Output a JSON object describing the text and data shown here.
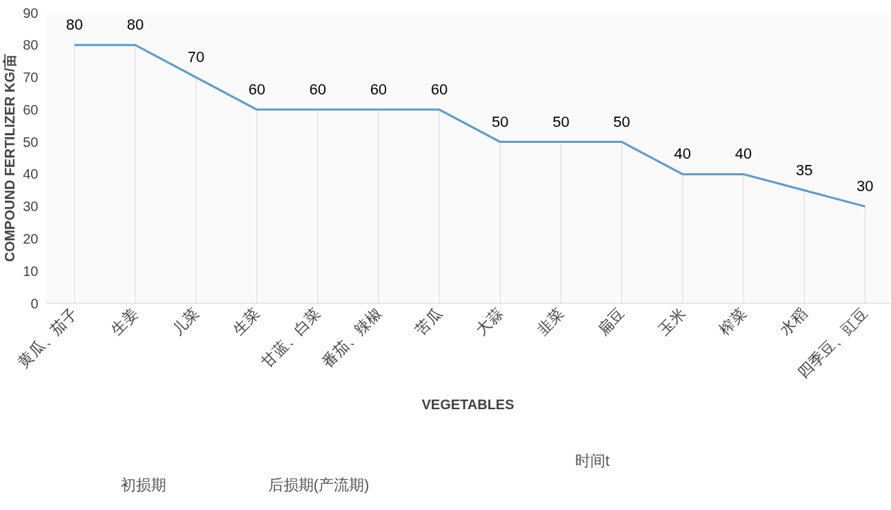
{
  "chart_data": {
    "type": "line",
    "xlabel": "VEGETABLES",
    "ylabel": "COMPOUND FERTILIZER KG/亩",
    "categories": [
      "黄瓜、茄子",
      "生姜",
      "儿菜",
      "生菜",
      "甘蓝、白菜",
      "番茄、辣椒",
      "苦瓜",
      "大蒜",
      "韭菜",
      "扁豆",
      "玉米",
      "榨菜",
      "水稻",
      "四季豆、豇豆"
    ],
    "series": [
      {
        "color": "#5b9bd5",
        "values": [
          80,
          80,
          70,
          60,
          60,
          60,
          60,
          50,
          50,
          50,
          40,
          40,
          35,
          30
        ]
      }
    ],
    "ylim": [
      0,
      90
    ],
    "yticks": [
      0,
      10,
      20,
      30,
      40,
      50,
      60,
      70,
      80,
      90
    ],
    "data_labels": true,
    "grid": "x",
    "annotations": [
      "初损期",
      "后损期(产流期)",
      "时间t"
    ]
  }
}
